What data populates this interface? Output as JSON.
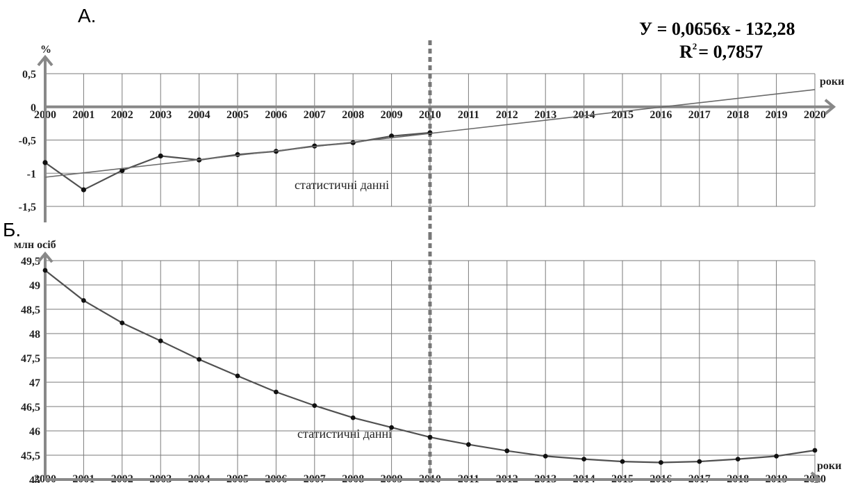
{
  "chart_data": [
    {
      "type": "line",
      "panel_label": "А.",
      "ylabel": "%",
      "xlabel": "роки",
      "xlim": [
        2000,
        2020
      ],
      "ylim": [
        -1.5,
        0.5
      ],
      "x_ticks": [
        "2000",
        "2001",
        "2002",
        "2003",
        "2004",
        "2005",
        "2006",
        "2007",
        "2008",
        "2009",
        "2010",
        "2011",
        "2012",
        "2013",
        "2014",
        "2015",
        "2016",
        "2017",
        "2018",
        "2019",
        "2020"
      ],
      "y_ticks": [
        "0,5",
        "0",
        "-0,5",
        "-1",
        "-1,5"
      ],
      "y_tick_values": [
        0.5,
        0,
        -0.5,
        -1,
        -1.5
      ],
      "grid": true,
      "series": [
        {
          "x": [
            2000,
            2001,
            2002,
            2003,
            2004,
            2005,
            2006,
            2007,
            2008,
            2009,
            2010
          ],
          "values": [
            -0.84,
            -1.25,
            -0.96,
            -0.74,
            -0.8,
            -0.72,
            -0.67,
            -0.59,
            -0.54,
            -0.44,
            -0.39
          ],
          "markers": true
        },
        {
          "x": [
            2000,
            2020
          ],
          "values": [
            -1.06,
            0.26
          ],
          "markers": false
        }
      ],
      "annotations": {
        "equation": "У = 0,0656x - 132,28",
        "r_squared_prefix": "R",
        "r_squared_sup": "2",
        "r_squared_value": "= 0,7857",
        "divider_label": "статистичні данні",
        "divider_x": 2010
      }
    },
    {
      "type": "line",
      "panel_label": "Б.",
      "ylabel": "млн осіб",
      "xlabel": "роки",
      "xlim": [
        2000,
        2020
      ],
      "ylim": [
        45,
        49.5
      ],
      "x_ticks": [
        "2000",
        "2001",
        "2002",
        "2003",
        "2004",
        "2005",
        "2006",
        "2007",
        "2008",
        "2009",
        "2010",
        "2011",
        "2012",
        "2013",
        "2014",
        "2015",
        "2016",
        "2017",
        "2018",
        "2019",
        "2020"
      ],
      "y_ticks": [
        "49,5",
        "49",
        "48,5",
        "48",
        "47,5",
        "47",
        "46,5",
        "46",
        "45,5",
        "45"
      ],
      "y_tick_values": [
        49.5,
        49,
        48.5,
        48,
        47.5,
        47,
        46.5,
        46,
        45.5,
        45
      ],
      "grid": true,
      "series": [
        {
          "x": [
            2000,
            2001,
            2002,
            2003,
            2004,
            2005,
            2006,
            2007,
            2008,
            2009,
            2010,
            2011,
            2012,
            2013,
            2014,
            2015,
            2016,
            2017,
            2018,
            2019,
            2020
          ],
          "values": [
            49.3,
            48.68,
            48.22,
            47.85,
            47.47,
            47.13,
            46.8,
            46.52,
            46.27,
            46.07,
            45.87,
            45.72,
            45.59,
            45.48,
            45.42,
            45.37,
            45.35,
            45.37,
            45.42,
            45.48,
            45.6
          ],
          "markers": true
        }
      ],
      "annotations": {
        "divider_label": "статистичні данні",
        "divider_x": 2010
      }
    }
  ]
}
